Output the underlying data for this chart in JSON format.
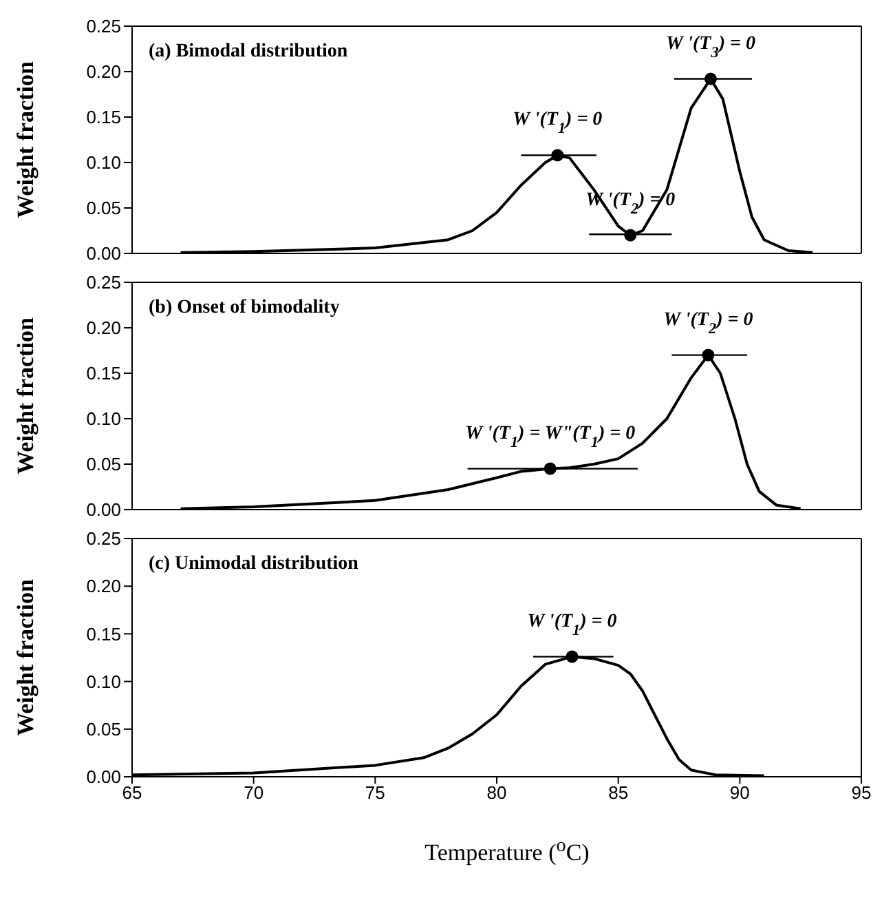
{
  "chart_data": [
    {
      "type": "line",
      "ylabel": "Weight fraction",
      "xlim": [
        65,
        95
      ],
      "xticks": [
        65,
        70,
        75,
        80,
        85,
        90,
        95
      ],
      "ylim": [
        0,
        0.25
      ],
      "yticks": [
        {
          "value": 0,
          "label": "0.00"
        },
        0.05,
        {
          "value": 0.1,
          "label": "0.10"
        },
        0.15,
        {
          "value": 0.2,
          "label": "0.20"
        },
        0.25
      ],
      "tick_labels": "y",
      "annotations": [
        "(a) Bimodal distribution",
        {
          "text": "W '(T$_{1}$) = 0",
          "x": 82.5,
          "y": 0.108
        },
        {
          "text": "W '(T$_{2}$) = 0",
          "x": 85.5,
          "y": 0.02
        },
        {
          "text": "W '(T$_{3}$) = 0",
          "x": 88.8,
          "y": 0.192
        }
      ],
      "series": [
        {
          "marker": "none",
          "color": "#000000",
          "x": [
            67,
            70,
            75,
            78,
            79,
            80,
            81,
            82,
            82.5,
            83,
            84,
            85,
            85.5,
            86,
            87,
            88,
            88.8,
            89.3,
            90,
            90.5,
            91,
            92,
            93
          ],
          "values": [
            0.001,
            0.002,
            0.006,
            0.015,
            0.025,
            0.045,
            0.075,
            0.1,
            0.108,
            0.105,
            0.07,
            0.03,
            0.02,
            0.025,
            0.07,
            0.16,
            0.192,
            0.17,
            0.09,
            0.04,
            0.015,
            0.003,
            0.001
          ]
        },
        {
          "type": "scatter",
          "marker": "circle",
          "color": "#000000",
          "x": [
            82.5,
            85.5,
            88.8
          ],
          "values": [
            0.108,
            0.02,
            0.192
          ]
        },
        {
          "marker": "none",
          "color": "#000000",
          "x": [
            81.0,
            84.1
          ],
          "values": [
            0.108,
            0.108
          ]
        },
        {
          "marker": "none",
          "color": "#000000",
          "x": [
            83.8,
            87.2
          ],
          "values": [
            0.021,
            0.021
          ]
        },
        {
          "marker": "none",
          "color": "#000000",
          "x": [
            87.3,
            90.5
          ],
          "values": [
            0.192,
            0.192
          ]
        }
      ]
    },
    {
      "type": "line",
      "ylabel": "Weight fraction",
      "xlim": [
        65,
        95
      ],
      "xticks": [
        65,
        70,
        75,
        80,
        85,
        90,
        95
      ],
      "ylim": [
        0,
        0.25
      ],
      "yticks": [
        {
          "value": 0,
          "label": "0.00"
        },
        0.05,
        {
          "value": 0.1,
          "label": "0.10"
        },
        0.15,
        {
          "value": 0.2,
          "label": "0.20"
        },
        0.25
      ],
      "tick_labels": "y",
      "annotations": [
        "(b) Onset of bimodality",
        {
          "text": "W '(T$_{1}$) = W\"(T$_{1}$) = 0",
          "x": 82.2,
          "y": 0.045
        },
        {
          "text": "W '(T$_{2}$) = 0",
          "x": 88.7,
          "y": 0.17
        }
      ],
      "series": [
        {
          "marker": "none",
          "color": "#000000",
          "x": [
            67,
            70,
            75,
            78,
            80,
            81,
            82.2,
            83,
            84,
            85,
            86,
            87,
            88,
            88.7,
            89.2,
            89.8,
            90.3,
            90.8,
            91.5,
            92.5
          ],
          "values": [
            0.001,
            0.003,
            0.01,
            0.022,
            0.035,
            0.042,
            0.045,
            0.046,
            0.05,
            0.056,
            0.073,
            0.1,
            0.145,
            0.17,
            0.15,
            0.1,
            0.05,
            0.02,
            0.005,
            0.001
          ]
        },
        {
          "type": "scatter",
          "marker": "circle",
          "color": "#000000",
          "x": [
            82.2,
            88.7
          ],
          "values": [
            0.045,
            0.17
          ]
        },
        {
          "marker": "none",
          "color": "#000000",
          "x": [
            78.8,
            85.8
          ],
          "values": [
            0.045,
            0.045
          ]
        },
        {
          "marker": "none",
          "color": "#000000",
          "x": [
            87.2,
            90.3
          ],
          "values": [
            0.17,
            0.17
          ]
        }
      ]
    },
    {
      "type": "line",
      "xlabel": "Temperature ($^{o}$C)",
      "ylabel": "Weight fraction",
      "xlim": [
        65,
        95
      ],
      "xticks": [
        65,
        70,
        75,
        80,
        85,
        90,
        95
      ],
      "ylim": [
        0,
        0.25
      ],
      "yticks": [
        {
          "value": 0,
          "label": "0.00"
        },
        0.05,
        {
          "value": 0.1,
          "label": "0.10"
        },
        0.15,
        {
          "value": 0.2,
          "label": "0.20"
        },
        0.25
      ],
      "annotations": [
        "(c) Unimodal distribution",
        {
          "text": "W '(T$_{1}$) = 0",
          "x": 83.1,
          "y": 0.126
        }
      ],
      "series": [
        {
          "marker": "none",
          "color": "#000000",
          "x": [
            65,
            70,
            75,
            77,
            78,
            79,
            80,
            81,
            82,
            83.1,
            84,
            85,
            85.5,
            86,
            86.5,
            87,
            87.5,
            88,
            89,
            91
          ],
          "values": [
            0.002,
            0.004,
            0.012,
            0.02,
            0.03,
            0.045,
            0.065,
            0.095,
            0.118,
            0.126,
            0.124,
            0.117,
            0.108,
            0.09,
            0.065,
            0.04,
            0.018,
            0.007,
            0.002,
            0.001
          ]
        },
        {
          "type": "scatter",
          "marker": "circle",
          "color": "#000000",
          "x": [
            83.1
          ],
          "values": [
            0.126
          ]
        },
        {
          "marker": "none",
          "color": "#000000",
          "x": [
            81.5,
            84.8
          ],
          "values": [
            0.126,
            0.126
          ]
        }
      ]
    }
  ]
}
